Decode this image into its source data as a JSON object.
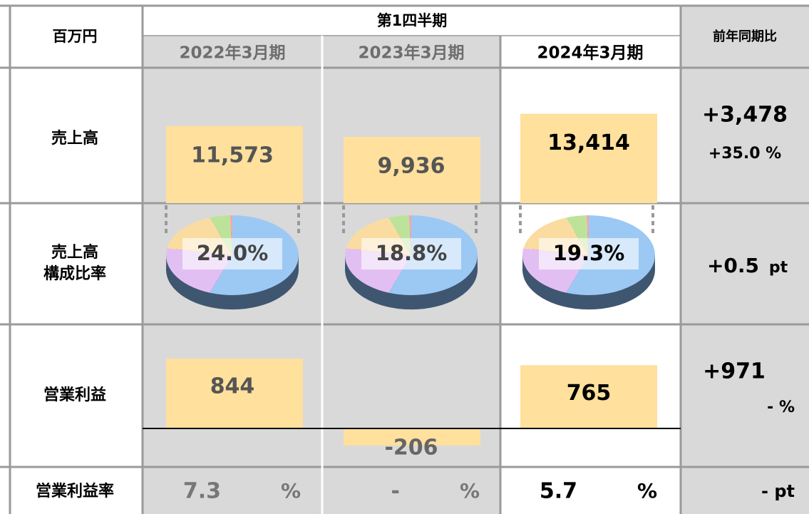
{
  "header": {
    "unit": "百万円",
    "period": "第1四半期",
    "columns": [
      "2022年3月期",
      "2023年3月期",
      "2024年3月期"
    ],
    "yoy": "前年同期比"
  },
  "sales": {
    "label": "売上高",
    "values": [
      11573,
      9936,
      13414
    ],
    "value_labels": [
      "11,573",
      "9,936",
      "13,414"
    ],
    "yoy": [
      "+3,478",
      "+35.0 %"
    ]
  },
  "share": {
    "label": [
      "売上高",
      "構成比率"
    ],
    "values": [
      24.0,
      18.8,
      19.3
    ],
    "value_labels": [
      "24.0%",
      "18.8%",
      "19.3%"
    ],
    "yoy": [
      "+0.5",
      "pt"
    ]
  },
  "profit": {
    "label": "営業利益",
    "values": [
      844,
      -206,
      765
    ],
    "yoy": [
      "+971",
      "- %"
    ]
  },
  "margin": {
    "label": "営業利益率",
    "values": [
      "7.3",
      "-",
      "5.7"
    ],
    "unit": "%",
    "yoy": "- pt"
  }
}
